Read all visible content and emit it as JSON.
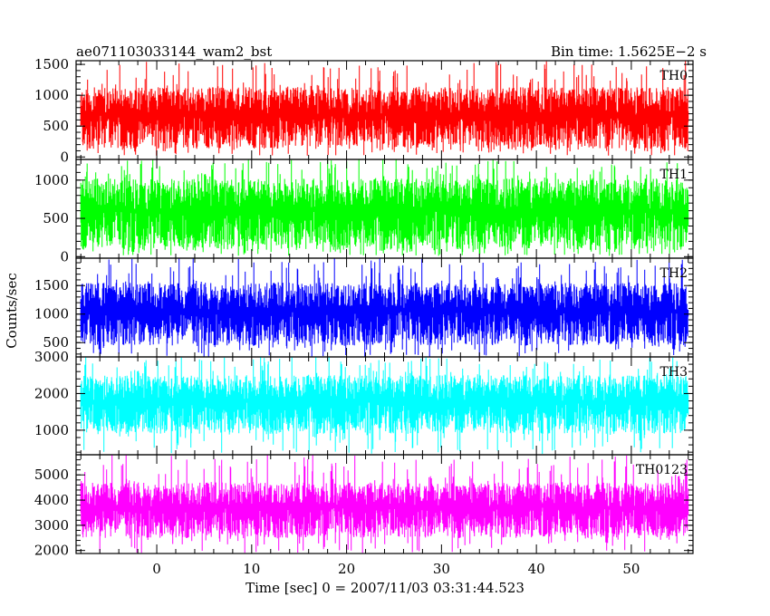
{
  "header": {
    "left_title": "ae071103033144_wam2_bst",
    "right_title": "Bin time: 1.5625E−2 s"
  },
  "chart_data": {
    "type": "line",
    "xlabel": "Time [sec] 0 = 2007/11/03 03:31:44.523",
    "ylabel": "Counts/sec",
    "xlim": [
      -8.5,
      56.5
    ],
    "x_range_data": [
      -8.0,
      56.0
    ],
    "x_ticks": [
      0,
      10,
      20,
      30,
      40,
      50
    ],
    "x_tick_labels": [
      "0",
      "10",
      "20",
      "30",
      "40",
      "50"
    ],
    "bin_time": 0.015625,
    "grid": false,
    "panels": [
      {
        "name": "TH0",
        "color": "#ff0000",
        "ylim": [
          -40,
          1560
        ],
        "y_ticks": [
          0,
          500,
          1000,
          1500
        ],
        "y_tick_labels": [
          "0",
          "500",
          "1000",
          "1500"
        ],
        "typical_range": [
          130,
          1130
        ],
        "spike_max": 1560,
        "spike_min": 20
      },
      {
        "name": "TH1",
        "color": "#00ff00",
        "ylim": [
          -20,
          1270
        ],
        "y_ticks": [
          0,
          500,
          1000
        ],
        "y_tick_labels": [
          "0",
          "500",
          "1000"
        ],
        "typical_range": [
          90,
          1020
        ],
        "spike_max": 1270,
        "spike_min": 10
      },
      {
        "name": "TH2",
        "color": "#0000ff",
        "ylim": [
          250,
          1980
        ],
        "y_ticks": [
          500,
          1000,
          1500
        ],
        "y_tick_labels": [
          "500",
          "1000",
          "1500"
        ],
        "typical_range": [
          450,
          1550
        ],
        "spike_max": 1980,
        "spike_min": 250
      },
      {
        "name": "TH3",
        "color": "#00ffff",
        "ylim": [
          330,
          3000
        ],
        "y_ticks": [
          1000,
          2000,
          3000
        ],
        "y_tick_labels": [
          "1000",
          "2000",
          "3000"
        ],
        "typical_range": [
          900,
          2500
        ],
        "spike_max": 3000,
        "spike_min": 350
      },
      {
        "name": "TH0123",
        "color": "#ff00ff",
        "ylim": [
          1880,
          5800
        ],
        "y_ticks": [
          2000,
          3000,
          4000,
          5000
        ],
        "y_tick_labels": [
          "2000",
          "3000",
          "4000",
          "5000"
        ],
        "typical_range": [
          2500,
          4700
        ],
        "spike_max": 5800,
        "spike_min": 1900
      }
    ]
  }
}
